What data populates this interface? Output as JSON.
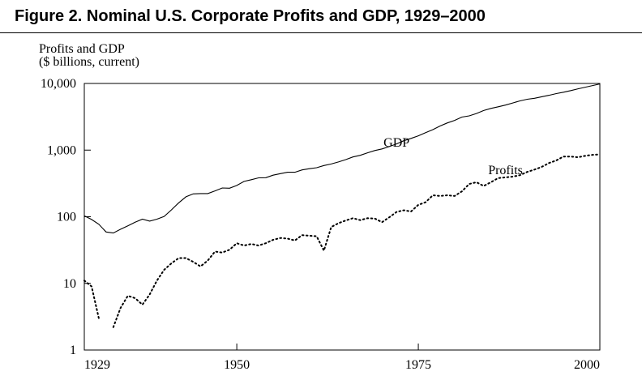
{
  "figure": {
    "title": "Figure 2.  Nominal U.S. Corporate Profits and GDP, 1929–2000"
  },
  "colors": {
    "line": "#000000",
    "axis": "#000000",
    "background": "#ffffff"
  },
  "chart_data": {
    "type": "line",
    "title": "Nominal U.S. Corporate Profits and GDP, 1929–2000",
    "ylabel": "Profits and GDP",
    "ylabel_unit": "($ billions, current)",
    "xlabel": "",
    "yscale": "log",
    "xlim": [
      1929,
      2000
    ],
    "ylim": [
      1,
      10000
    ],
    "x_ticks": [
      1929,
      1950,
      1975,
      2000
    ],
    "x_tick_labels": [
      "1929",
      "1950",
      "1975",
      "2000"
    ],
    "y_ticks": [
      1,
      10,
      100,
      1000,
      10000
    ],
    "y_tick_labels": [
      "1",
      "10",
      "100",
      "1,000",
      "10,000"
    ],
    "grid": false,
    "series": [
      {
        "name": "GDP",
        "style": "solid",
        "label_at": [
          1972,
          1300
        ],
        "x": [
          1929,
          1930,
          1931,
          1932,
          1933,
          1934,
          1935,
          1936,
          1937,
          1938,
          1939,
          1940,
          1941,
          1942,
          1943,
          1944,
          1945,
          1946,
          1947,
          1948,
          1949,
          1950,
          1951,
          1952,
          1953,
          1954,
          1955,
          1956,
          1957,
          1958,
          1959,
          1960,
          1961,
          1962,
          1963,
          1964,
          1965,
          1966,
          1967,
          1968,
          1969,
          1970,
          1971,
          1972,
          1973,
          1974,
          1975,
          1976,
          1977,
          1978,
          1979,
          1980,
          1981,
          1982,
          1983,
          1984,
          1985,
          1986,
          1987,
          1988,
          1989,
          1990,
          1991,
          1992,
          1993,
          1994,
          1995,
          1996,
          1997,
          1998,
          1999,
          2000
        ],
        "values": [
          103,
          91,
          77,
          59,
          57,
          65,
          73,
          83,
          92,
          86,
          92,
          101,
          127,
          162,
          199,
          220,
          223,
          223,
          244,
          270,
          268,
          295,
          339,
          359,
          383,
          385,
          421,
          443,
          465,
          465,
          505,
          526,
          544,
          586,
          618,
          664,
          720,
          790,
          834,
          911,
          985,
          1040,
          1130,
          1240,
          1380,
          1500,
          1640,
          1830,
          2030,
          2300,
          2560,
          2790,
          3130,
          3260,
          3540,
          3930,
          4220,
          4460,
          4740,
          5100,
          5480,
          5800,
          5990,
          6320,
          6640,
          7050,
          7400,
          7810,
          8320,
          8790,
          9300,
          9820
        ]
      },
      {
        "name": "Profits",
        "style": "dotted",
        "label_at": [
          1987,
          500
        ],
        "x": [
          1929,
          1930,
          1931,
          1932,
          1933,
          1934,
          1935,
          1936,
          1937,
          1938,
          1939,
          1940,
          1941,
          1942,
          1943,
          1944,
          1945,
          1946,
          1947,
          1948,
          1949,
          1950,
          1951,
          1952,
          1953,
          1954,
          1955,
          1956,
          1957,
          1958,
          1959,
          1960,
          1961,
          1962,
          1963,
          1964,
          1965,
          1966,
          1967,
          1968,
          1969,
          1970,
          1971,
          1972,
          1973,
          1974,
          1975,
          1976,
          1977,
          1978,
          1979,
          1980,
          1981,
          1982,
          1983,
          1984,
          1985,
          1986,
          1987,
          1988,
          1989,
          1990,
          1991,
          1992,
          1993,
          1994,
          1995,
          1996,
          1997,
          1998,
          1999,
          2000
        ],
        "values": [
          11,
          9,
          3,
          null,
          2.2,
          4.3,
          6.5,
          6,
          4.8,
          6.8,
          11,
          16,
          20,
          24,
          24,
          21,
          18,
          22,
          30,
          29,
          32,
          40,
          37,
          39,
          37,
          40,
          45,
          48,
          47,
          44,
          53,
          52,
          51,
          31,
          70,
          80,
          88,
          95,
          89,
          95,
          94,
          83,
          98,
          118,
          125,
          120,
          151,
          165,
          210,
          205,
          210,
          205,
          240,
          310,
          330,
          290,
          330,
          380,
          390,
          400,
          420,
          470,
          510,
          560,
          640,
          700,
          800,
          800,
          780,
          820,
          850,
          860
        ]
      }
    ]
  }
}
